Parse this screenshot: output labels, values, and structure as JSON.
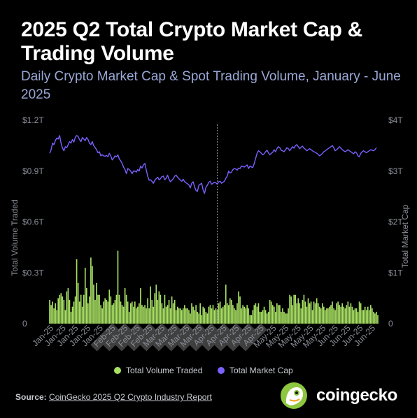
{
  "title": "2025 Q2 Total Crypto Market Cap & Trading Volume",
  "subtitle": "Daily Crypto Market Cap & Spot Trading Volume, January - June 2025",
  "footer": {
    "source_label": "Source:",
    "source_text": "CoinGecko 2025 Q2 Crypto Industry Report"
  },
  "logo": {
    "wordmark": "coingecko",
    "icon": "gecko-icon"
  },
  "colors": {
    "background": "#000000",
    "volume": "#a8e063",
    "market_cap": "#7b61ff",
    "axis_text": "#8b8f99",
    "subtitle": "#9aa8d6"
  },
  "chart_data": {
    "type": "bar+line",
    "left_axis": {
      "label": "Total Volume Traded",
      "ticks": [
        "0",
        "$0.3T",
        "$0.6T",
        "$0.9T",
        "$1.2T"
      ],
      "range": [
        0,
        1.2
      ],
      "unit": "T USD"
    },
    "right_axis": {
      "label": "Total Market Cap",
      "ticks": [
        "0",
        "$1T",
        "$2T",
        "$3T",
        "$4T"
      ],
      "range": [
        0,
        4
      ],
      "unit": "T USD"
    },
    "x_tick_labels": [
      "Jan-25",
      "Jan-25",
      "Jan-25",
      "Jan-25",
      "Jan-25",
      "Feb-25",
      "Feb-25",
      "Feb-25",
      "Feb-25",
      "Mar-25",
      "Mar-25",
      "Mar-25",
      "Mar-25",
      "Apr-25",
      "Apr-25",
      "Apr-25",
      "Apr-25",
      "Apr-25",
      "May-25",
      "May-25",
      "May-25",
      "May-25",
      "May-25",
      "Jun-25",
      "Jun-25",
      "Jun-25",
      "Jun-25"
    ],
    "grid": false,
    "legend": {
      "position": "bottom",
      "items": [
        "Total Volume Traded",
        "Total Market Cap"
      ]
    },
    "series": [
      {
        "name": "Total Volume Traded",
        "type": "bar",
        "axis": "left",
        "values": [
          0.14,
          0.11,
          0.13,
          0.09,
          0.12,
          0.08,
          0.15,
          0.17,
          0.18,
          0.16,
          0.14,
          0.08,
          0.19,
          0.21,
          0.14,
          0.07,
          0.1,
          0.13,
          0.16,
          0.38,
          0.24,
          0.13,
          0.17,
          0.1,
          0.17,
          0.33,
          0.21,
          0.12,
          0.16,
          0.39,
          0.34,
          0.23,
          0.14,
          0.24,
          0.17,
          0.17,
          0.11,
          0.09,
          0.13,
          0.15,
          0.14,
          0.13,
          0.2,
          0.16,
          0.11,
          0.12,
          0.14,
          0.17,
          0.43,
          0.17,
          0.13,
          0.11,
          0.1,
          0.21,
          0.17,
          0.13,
          0.07,
          0.12,
          0.13,
          0.1,
          0.13,
          0.09,
          0.1,
          0.12,
          0.21,
          0.11,
          0.1,
          0.11,
          0.09,
          0.15,
          0.09,
          0.22,
          0.14,
          0.1,
          0.18,
          0.23,
          0.14,
          0.19,
          0.17,
          0.12,
          0.09,
          0.17,
          0.1,
          0.11,
          0.14,
          0.09,
          0.16,
          0.12,
          0.14,
          0.08,
          0.1,
          0.09,
          0.09,
          0.08,
          0.09,
          0.11,
          0.09,
          0.09,
          0.08,
          0.06,
          0.12,
          0.1,
          0.08,
          0.11,
          0.07,
          0.06,
          0.12,
          0.05,
          0.1,
          0.09,
          0.07,
          0.06,
          0.1,
          0.11,
          0.09,
          0.11,
          0.08,
          0.09,
          0.08,
          0.12,
          0.13,
          0.09,
          0.1,
          0.11,
          0.23,
          0.12,
          0.11,
          0.15,
          0.14,
          0.11,
          0.09,
          0.08,
          0.12,
          0.19,
          0.16,
          0.09,
          0.11,
          0.1,
          0.09,
          0.11,
          0.09,
          0.05,
          0.05,
          0.08,
          0.11,
          0.12,
          0.1,
          0.12,
          0.07,
          0.07,
          0.08,
          0.1,
          0.08,
          0.06,
          0.07,
          0.14,
          0.13,
          0.11,
          0.1,
          0.07,
          0.12,
          0.11,
          0.11,
          0.07,
          0.09,
          0.07,
          0.06,
          0.06,
          0.09,
          0.17,
          0.16,
          0.11,
          0.17,
          0.17,
          0.12,
          0.15,
          0.12,
          0.09,
          0.14,
          0.17,
          0.13,
          0.1,
          0.15,
          0.12,
          0.13,
          0.08,
          0.13,
          0.12,
          0.15,
          0.12,
          0.1,
          0.09,
          0.12,
          0.1,
          0.08,
          0.09,
          0.09,
          0.1,
          0.11,
          0.13,
          0.09,
          0.08,
          0.12,
          0.13,
          0.11,
          0.1,
          0.12,
          0.1,
          0.09,
          0.11,
          0.13,
          0.1,
          0.12,
          0.1,
          0.08,
          0.09,
          0.09,
          0.07,
          0.13,
          0.12,
          0.08,
          0.08,
          0.1,
          0.08,
          0.1,
          0.08,
          0.11,
          0.09,
          0.07,
          0.06,
          0.07,
          0.05
        ]
      },
      {
        "name": "Total Market Cap",
        "type": "line",
        "axis": "right",
        "values": [
          3.35,
          3.42,
          3.55,
          3.52,
          3.6,
          3.65,
          3.63,
          3.7,
          3.55,
          3.45,
          3.4,
          3.48,
          3.46,
          3.52,
          3.58,
          3.55,
          3.62,
          3.57,
          3.66,
          3.7,
          3.68,
          3.62,
          3.58,
          3.66,
          3.63,
          3.6,
          3.66,
          3.62,
          3.55,
          3.52,
          3.58,
          3.5,
          3.46,
          3.42,
          3.36,
          3.38,
          3.3,
          3.32,
          3.3,
          3.29,
          3.31,
          3.28,
          3.35,
          3.3,
          3.22,
          3.25,
          3.3,
          3.28,
          3.32,
          3.24,
          3.2,
          3.15,
          3.08,
          3.03,
          2.95,
          3.05,
          3.03,
          3.0,
          2.95,
          3.0,
          3.0,
          2.98,
          3.03,
          3.0,
          3.1,
          3.06,
          3.12,
          3.15,
          3.02,
          2.9,
          2.82,
          2.83,
          2.8,
          2.76,
          2.82,
          2.85,
          2.88,
          2.83,
          2.85,
          2.89,
          2.9,
          2.83,
          2.86,
          2.92,
          2.84,
          2.79,
          2.82,
          2.85,
          2.9,
          2.92,
          2.88,
          2.85,
          2.82,
          2.8,
          2.84,
          2.79,
          2.77,
          2.75,
          2.73,
          2.67,
          2.76,
          2.79,
          2.69,
          2.62,
          2.6,
          2.72,
          2.74,
          2.76,
          2.63,
          2.56,
          2.68,
          2.72,
          2.78,
          2.8,
          2.74,
          2.76,
          2.78,
          2.77,
          2.74,
          2.79,
          2.8,
          2.76,
          2.78,
          2.8,
          2.86,
          2.9,
          3.0,
          2.96,
          2.98,
          3.03,
          3.05,
          3.04,
          3.02,
          3.06,
          3.05,
          3.1,
          3.09,
          3.08,
          3.1,
          3.12,
          3.05,
          3.1,
          3.08,
          3.07,
          3.15,
          3.25,
          3.35,
          3.4,
          3.38,
          3.35,
          3.32,
          3.34,
          3.38,
          3.41,
          3.36,
          3.32,
          3.35,
          3.37,
          3.42,
          3.38,
          3.44,
          3.48,
          3.46,
          3.41,
          3.4,
          3.38,
          3.42,
          3.46,
          3.44,
          3.4,
          3.44,
          3.48,
          3.45,
          3.5,
          3.52,
          3.48,
          3.44,
          3.47,
          3.49,
          3.45,
          3.43,
          3.4,
          3.42,
          3.44,
          3.42,
          3.4,
          3.38,
          3.37,
          3.35,
          3.33,
          3.3,
          3.32,
          3.35,
          3.38,
          3.4,
          3.42,
          3.44,
          3.46,
          3.48,
          3.5,
          3.46,
          3.4,
          3.42,
          3.45,
          3.48,
          3.45,
          3.42,
          3.4,
          3.38,
          3.4,
          3.42,
          3.4,
          3.38,
          3.36,
          3.34,
          3.38,
          3.36,
          3.3,
          3.28,
          3.35,
          3.38,
          3.4,
          3.38,
          3.36,
          3.38,
          3.4,
          3.42,
          3.41,
          3.4,
          3.42,
          3.46
        ]
      }
    ],
    "marker_line": {
      "index": 118
    }
  }
}
